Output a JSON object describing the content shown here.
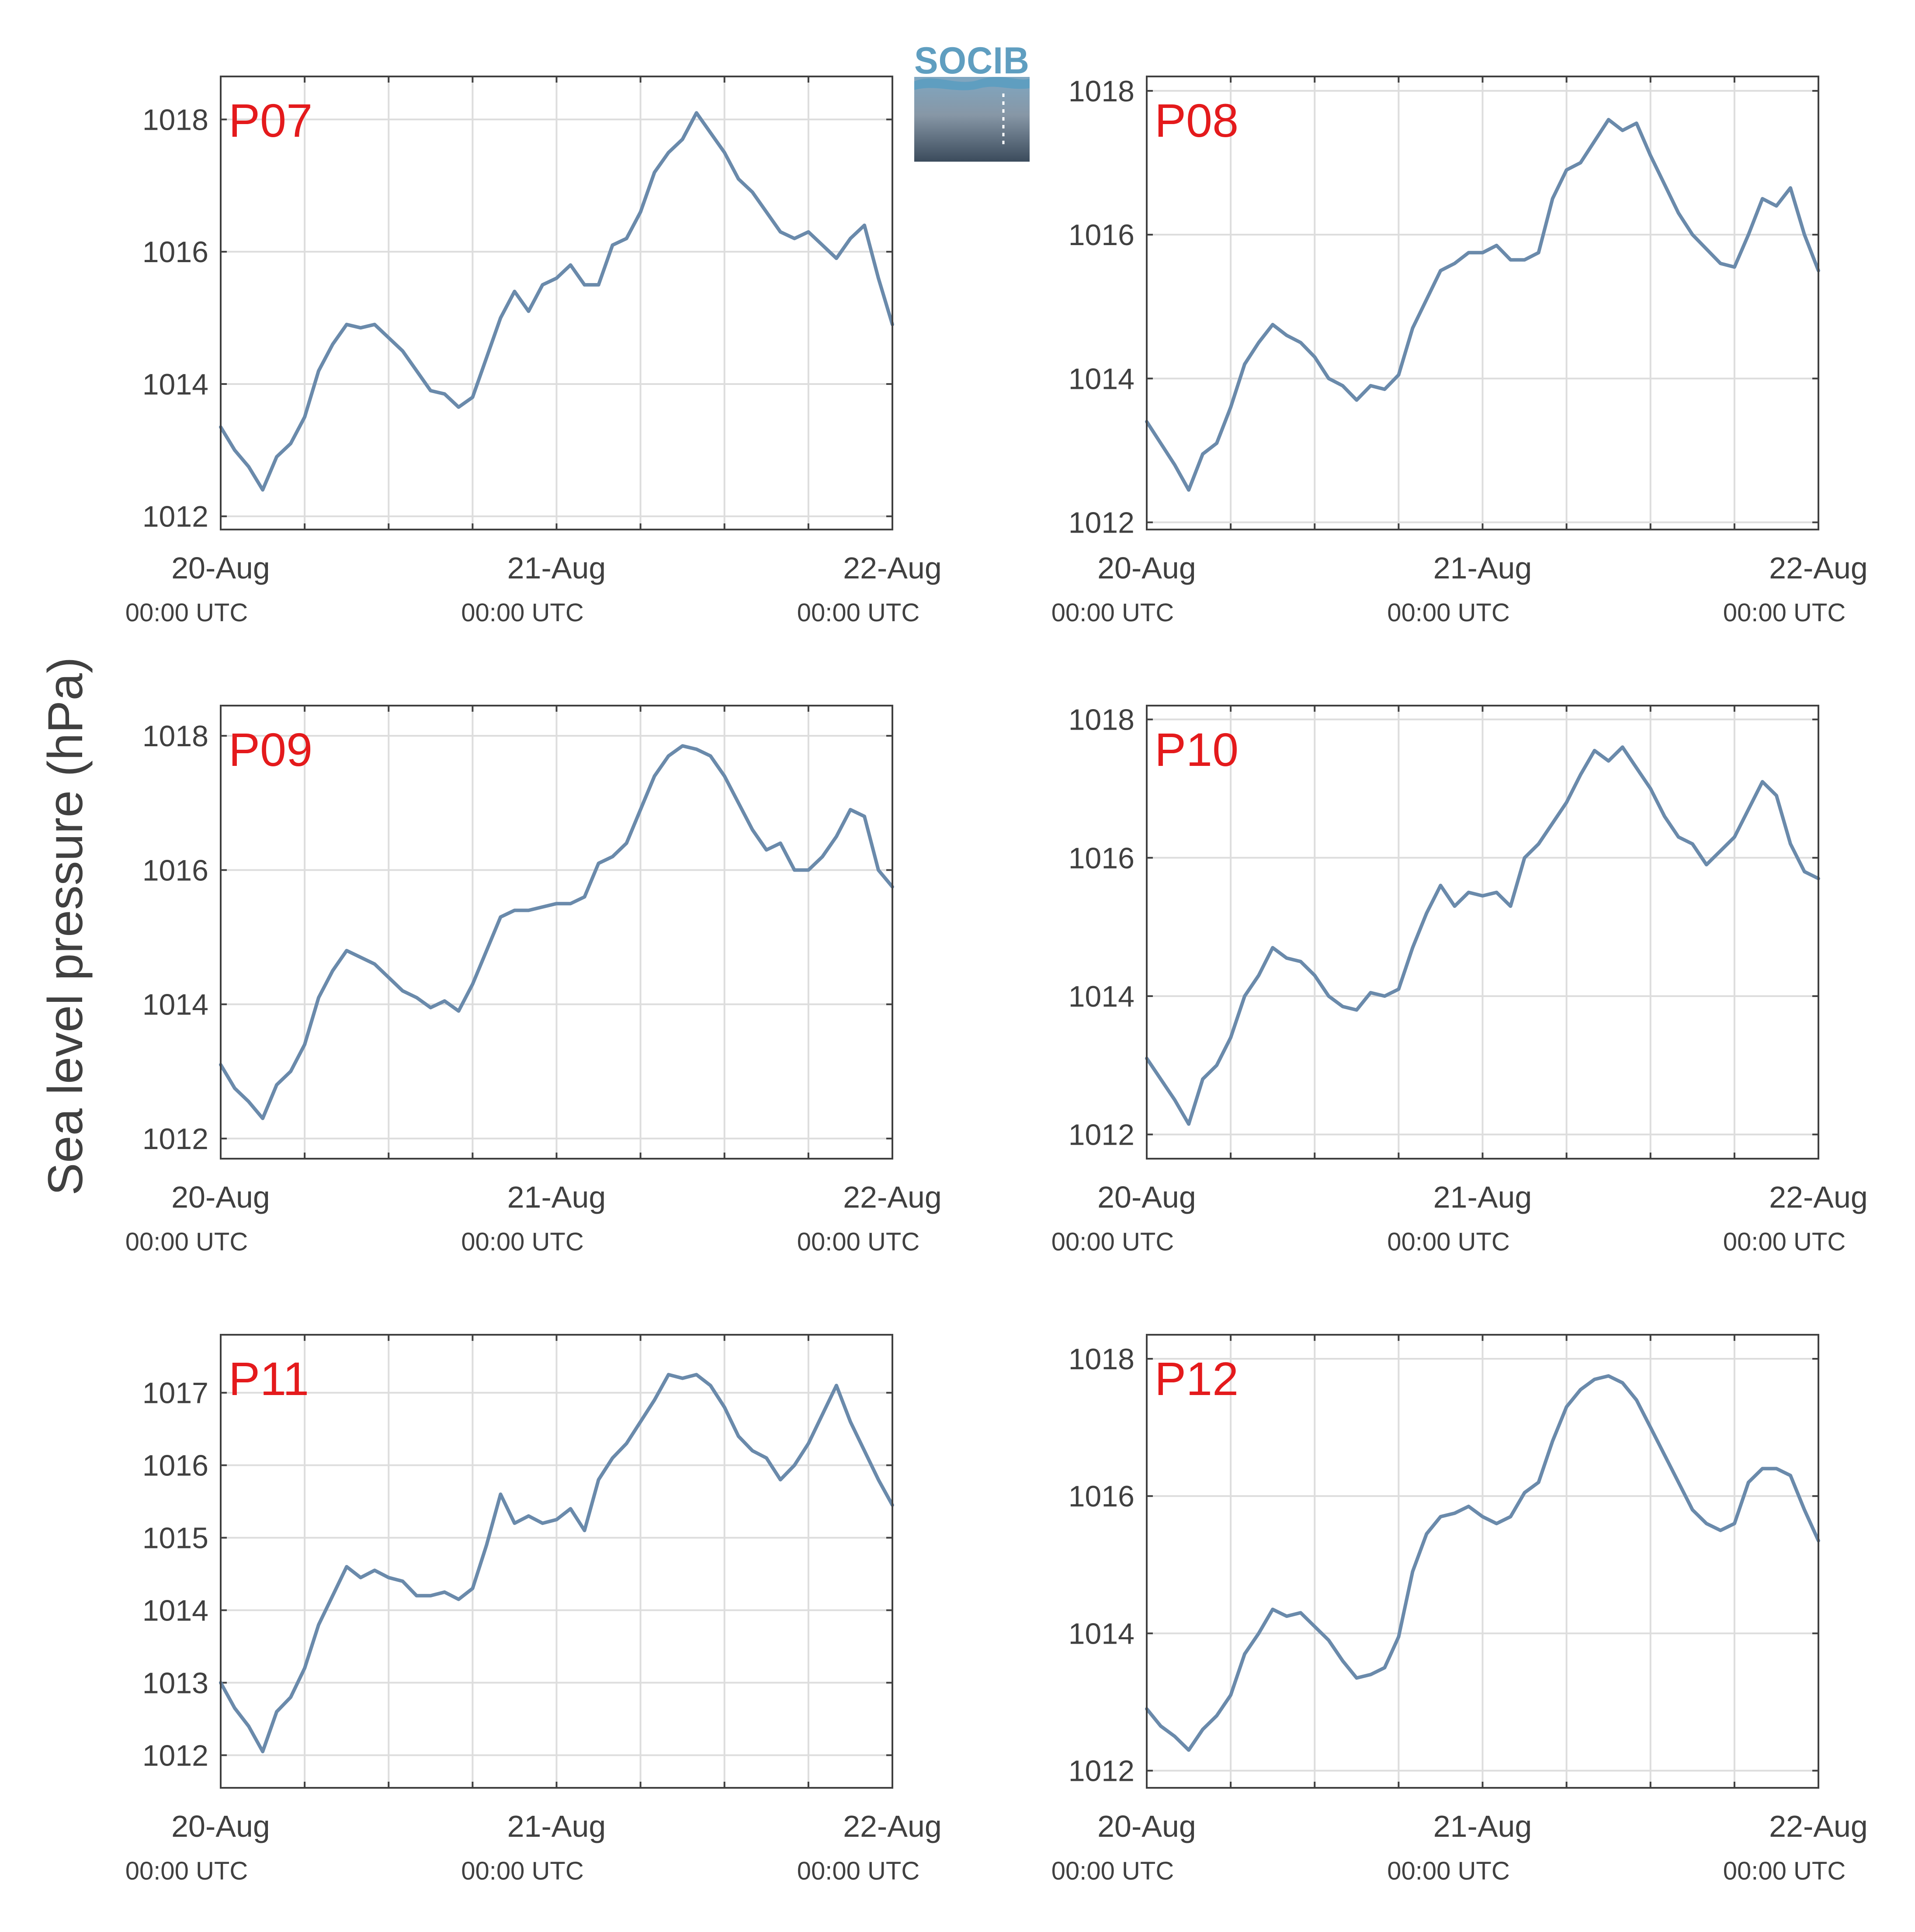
{
  "ylabel": "Sea level pressure (hPa)",
  "logo_text": "SOCIB",
  "colors": {
    "series": "#6a8aab",
    "title": "#e41a1c",
    "grid": "#dddddd",
    "axis": "#404040"
  },
  "x_ticks": [
    {
      "date": "20-Aug",
      "time": "00:00 UTC"
    },
    {
      "date": "21-Aug",
      "time": "00:00 UTC"
    },
    {
      "date": "22-Aug",
      "time": "00:00 UTC"
    }
  ],
  "chart_data": [
    {
      "type": "line",
      "title": "P07",
      "xlabel": "",
      "ylabel": "Sea level pressure (hPa)",
      "xlim": [
        "2023-08-20T00:00",
        "2023-08-22T00:00"
      ],
      "ylim": [
        1011.8,
        1018.65
      ],
      "yticks": [
        1012,
        1014,
        1016,
        1018
      ],
      "grid": true,
      "x": [
        "2023-08-20T00:00",
        "2023-08-20T01:00",
        "2023-08-20T02:00",
        "2023-08-20T03:00",
        "2023-08-20T04:00",
        "2023-08-20T05:00",
        "2023-08-20T06:00",
        "2023-08-20T07:00",
        "2023-08-20T08:00",
        "2023-08-20T09:00",
        "2023-08-20T10:00",
        "2023-08-20T11:00",
        "2023-08-20T12:00",
        "2023-08-20T13:00",
        "2023-08-20T14:00",
        "2023-08-20T15:00",
        "2023-08-20T16:00",
        "2023-08-20T17:00",
        "2023-08-20T18:00",
        "2023-08-20T19:00",
        "2023-08-20T20:00",
        "2023-08-20T21:00",
        "2023-08-20T22:00",
        "2023-08-20T23:00",
        "2023-08-21T00:00",
        "2023-08-21T01:00",
        "2023-08-21T02:00",
        "2023-08-21T03:00",
        "2023-08-21T04:00",
        "2023-08-21T05:00",
        "2023-08-21T06:00",
        "2023-08-21T07:00",
        "2023-08-21T08:00",
        "2023-08-21T09:00",
        "2023-08-21T10:00",
        "2023-08-21T11:00",
        "2023-08-21T12:00",
        "2023-08-21T13:00",
        "2023-08-21T14:00",
        "2023-08-21T15:00",
        "2023-08-21T16:00",
        "2023-08-21T17:00",
        "2023-08-21T18:00",
        "2023-08-21T19:00",
        "2023-08-21T20:00",
        "2023-08-21T21:00",
        "2023-08-21T22:00",
        "2023-08-21T23:00",
        "2023-08-22T00:00"
      ],
      "y": [
        1013.35,
        1013.0,
        1012.75,
        1012.4,
        1012.9,
        1013.1,
        1013.5,
        1014.2,
        1014.6,
        1014.9,
        1014.85,
        1014.9,
        1014.7,
        1014.5,
        1014.2,
        1013.9,
        1013.85,
        1013.65,
        1013.8,
        1014.4,
        1015.0,
        1015.4,
        1015.1,
        1015.5,
        1015.6,
        1015.8,
        1015.5,
        1015.5,
        1016.1,
        1016.2,
        1016.6,
        1017.2,
        1017.5,
        1017.7,
        1018.1,
        1017.8,
        1017.5,
        1017.1,
        1016.9,
        1016.6,
        1016.3,
        1016.2,
        1016.3,
        1016.1,
        1015.9,
        1016.2,
        1016.4,
        1015.6,
        1014.9
      ]
    },
    {
      "type": "line",
      "title": "P08",
      "xlabel": "",
      "ylabel": "Sea level pressure (hPa)",
      "xlim": [
        "2023-08-20T00:00",
        "2023-08-22T00:00"
      ],
      "ylim": [
        1011.9,
        1018.2
      ],
      "yticks": [
        1012,
        1014,
        1016,
        1018
      ],
      "grid": true,
      "x": [
        "2023-08-20T00:00",
        "2023-08-20T01:00",
        "2023-08-20T02:00",
        "2023-08-20T03:00",
        "2023-08-20T04:00",
        "2023-08-20T05:00",
        "2023-08-20T06:00",
        "2023-08-20T07:00",
        "2023-08-20T08:00",
        "2023-08-20T09:00",
        "2023-08-20T10:00",
        "2023-08-20T11:00",
        "2023-08-20T12:00",
        "2023-08-20T13:00",
        "2023-08-20T14:00",
        "2023-08-20T15:00",
        "2023-08-20T16:00",
        "2023-08-20T17:00",
        "2023-08-20T18:00",
        "2023-08-20T19:00",
        "2023-08-20T20:00",
        "2023-08-20T21:00",
        "2023-08-20T22:00",
        "2023-08-20T23:00",
        "2023-08-21T00:00",
        "2023-08-21T01:00",
        "2023-08-21T02:00",
        "2023-08-21T03:00",
        "2023-08-21T04:00",
        "2023-08-21T05:00",
        "2023-08-21T06:00",
        "2023-08-21T07:00",
        "2023-08-21T08:00",
        "2023-08-21T09:00",
        "2023-08-21T10:00",
        "2023-08-21T11:00",
        "2023-08-21T12:00",
        "2023-08-21T13:00",
        "2023-08-21T14:00",
        "2023-08-21T15:00",
        "2023-08-21T16:00",
        "2023-08-21T17:00",
        "2023-08-21T18:00",
        "2023-08-21T19:00",
        "2023-08-21T20:00",
        "2023-08-21T21:00",
        "2023-08-21T22:00",
        "2023-08-21T23:00",
        "2023-08-22T00:00"
      ],
      "y": [
        1013.4,
        1013.1,
        1012.8,
        1012.45,
        1012.95,
        1013.1,
        1013.6,
        1014.2,
        1014.5,
        1014.75,
        1014.6,
        1014.5,
        1014.3,
        1014.0,
        1013.9,
        1013.7,
        1013.9,
        1013.85,
        1014.05,
        1014.7,
        1015.1,
        1015.5,
        1015.6,
        1015.75,
        1015.75,
        1015.85,
        1015.65,
        1015.65,
        1015.75,
        1016.5,
        1016.9,
        1017.0,
        1017.3,
        1017.6,
        1017.45,
        1017.55,
        1017.1,
        1016.7,
        1016.3,
        1016.0,
        1015.8,
        1015.6,
        1015.55,
        1016.0,
        1016.5,
        1016.4,
        1016.65,
        1016.0,
        1015.5
      ]
    },
    {
      "type": "line",
      "title": "P09",
      "xlabel": "",
      "ylabel": "Sea level pressure (hPa)",
      "xlim": [
        "2023-08-20T00:00",
        "2023-08-22T00:00"
      ],
      "ylim": [
        1011.7,
        1018.45
      ],
      "yticks": [
        1012,
        1014,
        1016,
        1018
      ],
      "grid": true,
      "x": [
        "2023-08-20T00:00",
        "2023-08-20T01:00",
        "2023-08-20T02:00",
        "2023-08-20T03:00",
        "2023-08-20T04:00",
        "2023-08-20T05:00",
        "2023-08-20T06:00",
        "2023-08-20T07:00",
        "2023-08-20T08:00",
        "2023-08-20T09:00",
        "2023-08-20T10:00",
        "2023-08-20T11:00",
        "2023-08-20T12:00",
        "2023-08-20T13:00",
        "2023-08-20T14:00",
        "2023-08-20T15:00",
        "2023-08-20T16:00",
        "2023-08-20T17:00",
        "2023-08-20T18:00",
        "2023-08-20T19:00",
        "2023-08-20T20:00",
        "2023-08-20T21:00",
        "2023-08-20T22:00",
        "2023-08-20T23:00",
        "2023-08-21T00:00",
        "2023-08-21T01:00",
        "2023-08-21T02:00",
        "2023-08-21T03:00",
        "2023-08-21T04:00",
        "2023-08-21T05:00",
        "2023-08-21T06:00",
        "2023-08-21T07:00",
        "2023-08-21T08:00",
        "2023-08-21T09:00",
        "2023-08-21T10:00",
        "2023-08-21T11:00",
        "2023-08-21T12:00",
        "2023-08-21T13:00",
        "2023-08-21T14:00",
        "2023-08-21T15:00",
        "2023-08-21T16:00",
        "2023-08-21T17:00",
        "2023-08-21T18:00",
        "2023-08-21T19:00",
        "2023-08-21T20:00",
        "2023-08-21T21:00",
        "2023-08-21T22:00",
        "2023-08-21T23:00",
        "2023-08-22T00:00"
      ],
      "y": [
        1013.1,
        1012.75,
        1012.55,
        1012.3,
        1012.8,
        1013.0,
        1013.4,
        1014.1,
        1014.5,
        1014.8,
        1014.7,
        1014.6,
        1014.4,
        1014.2,
        1014.1,
        1013.95,
        1014.05,
        1013.9,
        1014.3,
        1014.8,
        1015.3,
        1015.4,
        1015.4,
        1015.45,
        1015.5,
        1015.5,
        1015.6,
        1016.1,
        1016.2,
        1016.4,
        1016.9,
        1017.4,
        1017.7,
        1017.85,
        1017.8,
        1017.7,
        1017.4,
        1017.0,
        1016.6,
        1016.3,
        1016.4,
        1016.0,
        1016.0,
        1016.2,
        1016.5,
        1016.9,
        1016.8,
        1016.0,
        1015.75
      ]
    },
    {
      "type": "line",
      "title": "P10",
      "xlabel": "",
      "ylabel": "Sea level pressure (hPa)",
      "xlim": [
        "2023-08-20T00:00",
        "2023-08-22T00:00"
      ],
      "ylim": [
        1011.65,
        1018.2
      ],
      "yticks": [
        1012,
        1014,
        1016,
        1018
      ],
      "grid": true,
      "x": [
        "2023-08-20T00:00",
        "2023-08-20T01:00",
        "2023-08-20T02:00",
        "2023-08-20T03:00",
        "2023-08-20T04:00",
        "2023-08-20T05:00",
        "2023-08-20T06:00",
        "2023-08-20T07:00",
        "2023-08-20T08:00",
        "2023-08-20T09:00",
        "2023-08-20T10:00",
        "2023-08-20T11:00",
        "2023-08-20T12:00",
        "2023-08-20T13:00",
        "2023-08-20T14:00",
        "2023-08-20T15:00",
        "2023-08-20T16:00",
        "2023-08-20T17:00",
        "2023-08-20T18:00",
        "2023-08-20T19:00",
        "2023-08-20T20:00",
        "2023-08-20T21:00",
        "2023-08-20T22:00",
        "2023-08-20T23:00",
        "2023-08-21T00:00",
        "2023-08-21T01:00",
        "2023-08-21T02:00",
        "2023-08-21T03:00",
        "2023-08-21T04:00",
        "2023-08-21T05:00",
        "2023-08-21T06:00",
        "2023-08-21T07:00",
        "2023-08-21T08:00",
        "2023-08-21T09:00",
        "2023-08-21T10:00",
        "2023-08-21T11:00",
        "2023-08-21T12:00",
        "2023-08-21T13:00",
        "2023-08-21T14:00",
        "2023-08-21T15:00",
        "2023-08-21T16:00",
        "2023-08-21T17:00",
        "2023-08-21T18:00",
        "2023-08-21T19:00",
        "2023-08-21T20:00",
        "2023-08-21T21:00",
        "2023-08-21T22:00",
        "2023-08-21T23:00",
        "2023-08-22T00:00"
      ],
      "y": [
        1013.1,
        1012.8,
        1012.5,
        1012.15,
        1012.8,
        1013.0,
        1013.4,
        1014.0,
        1014.3,
        1014.7,
        1014.55,
        1014.5,
        1014.3,
        1014.0,
        1013.85,
        1013.8,
        1014.05,
        1014.0,
        1014.1,
        1014.7,
        1015.2,
        1015.6,
        1015.3,
        1015.5,
        1015.45,
        1015.5,
        1015.3,
        1016.0,
        1016.2,
        1016.5,
        1016.8,
        1017.2,
        1017.55,
        1017.4,
        1017.6,
        1017.3,
        1017.0,
        1016.6,
        1016.3,
        1016.2,
        1015.9,
        1016.1,
        1016.3,
        1016.7,
        1017.1,
        1016.9,
        1016.2,
        1015.8,
        1015.7
      ]
    },
    {
      "type": "line",
      "title": "P11",
      "xlabel": "",
      "ylabel": "Sea level pressure (hPa)",
      "xlim": [
        "2023-08-20T00:00",
        "2023-08-22T00:00"
      ],
      "ylim": [
        1011.55,
        1017.8
      ],
      "yticks": [
        1012,
        1013,
        1014,
        1015,
        1016,
        1017
      ],
      "grid": true,
      "x": [
        "2023-08-20T00:00",
        "2023-08-20T01:00",
        "2023-08-20T02:00",
        "2023-08-20T03:00",
        "2023-08-20T04:00",
        "2023-08-20T05:00",
        "2023-08-20T06:00",
        "2023-08-20T07:00",
        "2023-08-20T08:00",
        "2023-08-20T09:00",
        "2023-08-20T10:00",
        "2023-08-20T11:00",
        "2023-08-20T12:00",
        "2023-08-20T13:00",
        "2023-08-20T14:00",
        "2023-08-20T15:00",
        "2023-08-20T16:00",
        "2023-08-20T17:00",
        "2023-08-20T18:00",
        "2023-08-20T19:00",
        "2023-08-20T20:00",
        "2023-08-20T21:00",
        "2023-08-20T22:00",
        "2023-08-20T23:00",
        "2023-08-21T00:00",
        "2023-08-21T01:00",
        "2023-08-21T02:00",
        "2023-08-21T03:00",
        "2023-08-21T04:00",
        "2023-08-21T05:00",
        "2023-08-21T06:00",
        "2023-08-21T07:00",
        "2023-08-21T08:00",
        "2023-08-21T09:00",
        "2023-08-21T10:00",
        "2023-08-21T11:00",
        "2023-08-21T12:00",
        "2023-08-21T13:00",
        "2023-08-21T14:00",
        "2023-08-21T15:00",
        "2023-08-21T16:00",
        "2023-08-21T17:00",
        "2023-08-21T18:00",
        "2023-08-21T19:00",
        "2023-08-21T20:00",
        "2023-08-21T21:00",
        "2023-08-21T22:00",
        "2023-08-21T23:00",
        "2023-08-22T00:00"
      ],
      "y": [
        1013.0,
        1012.65,
        1012.4,
        1012.05,
        1012.6,
        1012.8,
        1013.2,
        1013.8,
        1014.2,
        1014.6,
        1014.45,
        1014.55,
        1014.45,
        1014.4,
        1014.2,
        1014.2,
        1014.25,
        1014.15,
        1014.3,
        1014.9,
        1015.6,
        1015.2,
        1015.3,
        1015.2,
        1015.25,
        1015.4,
        1015.1,
        1015.8,
        1016.1,
        1016.3,
        1016.6,
        1016.9,
        1017.25,
        1017.2,
        1017.25,
        1017.1,
        1016.8,
        1016.4,
        1016.2,
        1016.1,
        1015.8,
        1016.0,
        1016.3,
        1016.7,
        1017.1,
        1016.6,
        1016.2,
        1015.8,
        1015.45
      ]
    },
    {
      "type": "line",
      "title": "P12",
      "xlabel": "",
      "ylabel": "Sea level pressure (hPa)",
      "xlim": [
        "2023-08-20T00:00",
        "2023-08-22T00:00"
      ],
      "ylim": [
        1011.75,
        1018.35
      ],
      "yticks": [
        1012,
        1014,
        1016,
        1018
      ],
      "grid": true,
      "x": [
        "2023-08-20T00:00",
        "2023-08-20T01:00",
        "2023-08-20T02:00",
        "2023-08-20T03:00",
        "2023-08-20T04:00",
        "2023-08-20T05:00",
        "2023-08-20T06:00",
        "2023-08-20T07:00",
        "2023-08-20T08:00",
        "2023-08-20T09:00",
        "2023-08-20T10:00",
        "2023-08-20T11:00",
        "2023-08-20T12:00",
        "2023-08-20T13:00",
        "2023-08-20T14:00",
        "2023-08-20T15:00",
        "2023-08-20T16:00",
        "2023-08-20T17:00",
        "2023-08-20T18:00",
        "2023-08-20T19:00",
        "2023-08-20T20:00",
        "2023-08-20T21:00",
        "2023-08-20T22:00",
        "2023-08-20T23:00",
        "2023-08-21T00:00",
        "2023-08-21T01:00",
        "2023-08-21T02:00",
        "2023-08-21T03:00",
        "2023-08-21T04:00",
        "2023-08-21T05:00",
        "2023-08-21T06:00",
        "2023-08-21T07:00",
        "2023-08-21T08:00",
        "2023-08-21T09:00",
        "2023-08-21T10:00",
        "2023-08-21T11:00",
        "2023-08-21T12:00",
        "2023-08-21T13:00",
        "2023-08-21T14:00",
        "2023-08-21T15:00",
        "2023-08-21T16:00",
        "2023-08-21T17:00",
        "2023-08-21T18:00",
        "2023-08-21T19:00",
        "2023-08-21T20:00",
        "2023-08-21T21:00",
        "2023-08-21T22:00",
        "2023-08-21T23:00",
        "2023-08-22T00:00"
      ],
      "y": [
        1012.9,
        1012.65,
        1012.5,
        1012.3,
        1012.6,
        1012.8,
        1013.1,
        1013.7,
        1014.0,
        1014.35,
        1014.25,
        1014.3,
        1014.1,
        1013.9,
        1013.6,
        1013.35,
        1013.4,
        1013.5,
        1013.95,
        1014.9,
        1015.45,
        1015.7,
        1015.75,
        1015.85,
        1015.7,
        1015.6,
        1015.7,
        1016.05,
        1016.2,
        1016.8,
        1017.3,
        1017.55,
        1017.7,
        1017.75,
        1017.65,
        1017.4,
        1017.0,
        1016.6,
        1016.2,
        1015.8,
        1015.6,
        1015.5,
        1015.6,
        1016.2,
        1016.4,
        1016.4,
        1016.3,
        1015.8,
        1015.35
      ]
    }
  ]
}
